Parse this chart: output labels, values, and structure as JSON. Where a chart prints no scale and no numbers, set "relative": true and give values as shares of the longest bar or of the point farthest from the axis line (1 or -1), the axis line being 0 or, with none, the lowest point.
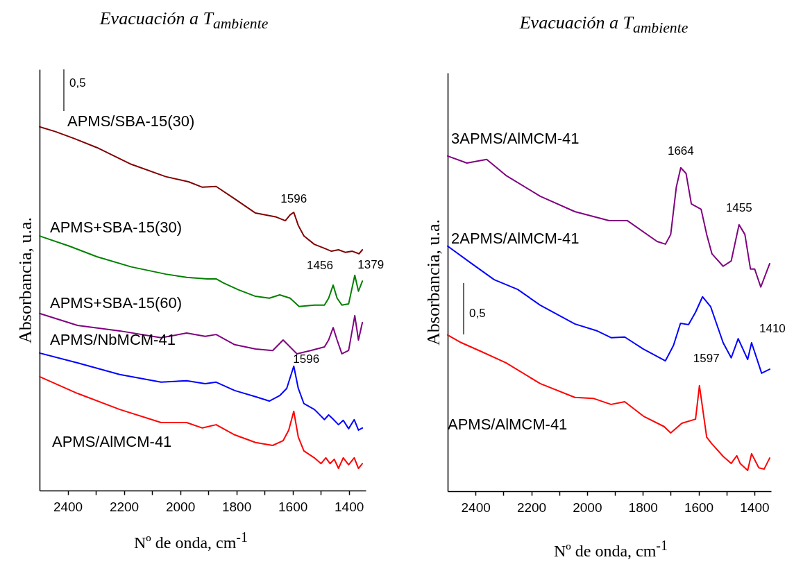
{
  "chart_data": [
    {
      "type": "line",
      "title": "Evacuación a T$_{ambiente}$",
      "xlabel": "Nº de onda, cm$^{-1}$",
      "ylabel": "Absorbancia, u.a.",
      "relative": true,
      "xlim": [
        2500,
        1340
      ],
      "xticks": [
        2400,
        {
          "value": 2300,
          "label": null
        },
        2200,
        {
          "value": 2100,
          "label": null
        },
        2000,
        {
          "value": 1900,
          "label": null
        },
        1800,
        {
          "value": 1700,
          "label": null
        },
        1600,
        {
          "value": 1500,
          "label": null
        },
        1400
      ],
      "annotations": [
        "0,5",
        {
          "text": "1596",
          "x": 1596,
          "y": 0.765
        },
        {
          "text": "1456",
          "x": 1456,
          "y": 0.565
        },
        {
          "text": "1379",
          "x": 1379,
          "y": 0.592
        },
        {
          "text": "1596",
          "x": 1596,
          "y": 0.342
        }
      ],
      "series": [
        {
          "name": "APMS/SBA-15(30)",
          "color": "#800000",
          "x": [
            2500,
            2444,
            2377,
            2296,
            2174,
            2051,
            1970,
            1921,
            1872,
            1806,
            1732,
            1658,
            1626,
            1609,
            1596,
            1580,
            1560,
            1523,
            1487,
            1462,
            1437,
            1413,
            1388,
            1364,
            1352
          ],
          "values": [
            1,
            0.987,
            0.968,
            0.943,
            0.897,
            0.863,
            0.849,
            0.834,
            0.836,
            0.802,
            0.763,
            0.752,
            0.742,
            0.758,
            0.765,
            0.729,
            0.7,
            0.677,
            0.666,
            0.658,
            0.662,
            0.655,
            0.658,
            0.651,
            0.662
          ]
        },
        {
          "name": "APMS+SBA-15(30)",
          "color": "#008000",
          "x": [
            2500,
            2394,
            2296,
            2174,
            2051,
            1977,
            1904,
            1872,
            1847,
            1793,
            1732,
            1683,
            1646,
            1609,
            1577,
            1523,
            1487,
            1472,
            1456,
            1442,
            1425,
            1401,
            1379,
            1366,
            1352
          ],
          "values": [
            0.7,
            0.672,
            0.643,
            0.615,
            0.595,
            0.586,
            0.582,
            0.582,
            0.571,
            0.552,
            0.534,
            0.529,
            0.538,
            0.529,
            0.506,
            0.51,
            0.51,
            0.529,
            0.565,
            0.529,
            0.51,
            0.513,
            0.592,
            0.548,
            0.576
          ]
        },
        {
          "name": "APMS+SBA-15(60)",
          "color": "#800080",
          "x": [
            2500,
            2365,
            2215,
            2068,
            1977,
            1911,
            1872,
            1806,
            1732,
            1671,
            1634,
            1585,
            1536,
            1487,
            1472,
            1456,
            1442,
            1425,
            1401,
            1379,
            1366,
            1352
          ],
          "values": [
            0.487,
            0.454,
            0.439,
            0.42,
            0.433,
            0.424,
            0.429,
            0.401,
            0.389,
            0.385,
            0.414,
            0.376,
            0.385,
            0.395,
            0.414,
            0.448,
            0.414,
            0.376,
            0.385,
            0.481,
            0.414,
            0.462
          ]
        },
        {
          "name": "APMS/NbMCM-41",
          "color": "#0000ff",
          "x": [
            2500,
            2365,
            2215,
            2068,
            1977,
            1911,
            1872,
            1806,
            1732,
            1683,
            1646,
            1621,
            1596,
            1580,
            1560,
            1523,
            1511,
            1487,
            1472,
            1457,
            1437,
            1420,
            1401,
            1381,
            1366,
            1352
          ],
          "values": [
            0.378,
            0.351,
            0.319,
            0.298,
            0.302,
            0.294,
            0.298,
            0.275,
            0.258,
            0.246,
            0.261,
            0.281,
            0.342,
            0.281,
            0.239,
            0.223,
            0.214,
            0.195,
            0.208,
            0.197,
            0.181,
            0.193,
            0.17,
            0.195,
            0.166,
            0.172
          ]
        },
        {
          "name": "APMS/AlMCM-41",
          "color": "#ff0000",
          "x": [
            2500,
            2365,
            2215,
            2068,
            1977,
            1921,
            1872,
            1806,
            1732,
            1671,
            1634,
            1614,
            1596,
            1580,
            1560,
            1523,
            1499,
            1482,
            1467,
            1452,
            1437,
            1420,
            1401,
            1381,
            1366,
            1352
          ],
          "values": [
            0.313,
            0.267,
            0.223,
            0.187,
            0.187,
            0.172,
            0.181,
            0.153,
            0.132,
            0.124,
            0.137,
            0.166,
            0.218,
            0.147,
            0.109,
            0.09,
            0.074,
            0.09,
            0.074,
            0.086,
            0.061,
            0.09,
            0.071,
            0.09,
            0.061,
            0.074
          ]
        }
      ]
    },
    {
      "type": "line",
      "title": "Evacuación a T$_{ambiente}$",
      "xlabel": "Nº de onda, cm$^{-1}$",
      "ylabel": "Absorbancia, u.a.",
      "relative": true,
      "xlim": [
        2500,
        1340
      ],
      "xticks": [
        2400,
        {
          "value": 2300,
          "label": null
        },
        2200,
        {
          "value": 2100,
          "label": null
        },
        2000,
        {
          "value": 1900,
          "label": null
        },
        1800,
        {
          "value": 1700,
          "label": null
        },
        1600,
        {
          "value": 1500,
          "label": null
        },
        1400
      ],
      "annotations": [
        "0,5",
        {
          "text": "1664",
          "x": 1664,
          "y": 0.965
        },
        {
          "text": "1455",
          "x": 1455,
          "y": 0.795
        },
        {
          "text": "1410",
          "x": 1410,
          "y": 0.443
        },
        {
          "text": "1597",
          "x": 1597,
          "y": 0.315
        }
      ],
      "series": [
        {
          "name": "3APMS/AlMCM-41",
          "color": "#800080",
          "x": [
            2500,
            2431,
            2360,
            2291,
            2168,
            2044,
            1921,
            1855,
            1749,
            1719,
            1700,
            1680,
            1664,
            1645,
            1626,
            1591,
            1571,
            1552,
            1512,
            1483,
            1455,
            1434,
            1414,
            1399,
            1377,
            1345
          ],
          "values": [
            1,
            0.979,
            0.99,
            0.942,
            0.88,
            0.834,
            0.807,
            0.807,
            0.745,
            0.737,
            0.766,
            0.907,
            0.965,
            0.948,
            0.857,
            0.841,
            0.766,
            0.708,
            0.671,
            0.687,
            0.795,
            0.766,
            0.663,
            0.663,
            0.609,
            0.679
          ]
        },
        {
          "name": "2APMS/AlMCM-41",
          "color": "#0000ff",
          "x": [
            2500,
            2414,
            2333,
            2249,
            2168,
            2044,
            1963,
            1914,
            1865,
            1798,
            1719,
            1690,
            1665,
            1636,
            1611,
            1586,
            1557,
            1512,
            1483,
            1458,
            1424,
            1410,
            1374,
            1345
          ],
          "values": [
            0.731,
            0.679,
            0.631,
            0.602,
            0.555,
            0.499,
            0.478,
            0.458,
            0.46,
            0.424,
            0.389,
            0.435,
            0.501,
            0.497,
            0.534,
            0.58,
            0.551,
            0.443,
            0.398,
            0.455,
            0.393,
            0.443,
            0.352,
            0.364
          ]
        },
        {
          "name": "APMS/AlMCM-41",
          "color": "#ff0000",
          "x": [
            2500,
            2456,
            2372,
            2291,
            2168,
            2044,
            1978,
            1914,
            1865,
            1798,
            1724,
            1700,
            1660,
            1611,
            1597,
            1571,
            1552,
            1512,
            1483,
            1463,
            1451,
            1424,
            1410,
            1384,
            1365,
            1345
          ],
          "values": [
            0.466,
            0.445,
            0.414,
            0.383,
            0.321,
            0.28,
            0.277,
            0.259,
            0.267,
            0.224,
            0.193,
            0.174,
            0.203,
            0.215,
            0.315,
            0.161,
            0.141,
            0.104,
            0.083,
            0.106,
            0.083,
            0.062,
            0.112,
            0.07,
            0.066,
            0.099
          ]
        }
      ]
    }
  ]
}
